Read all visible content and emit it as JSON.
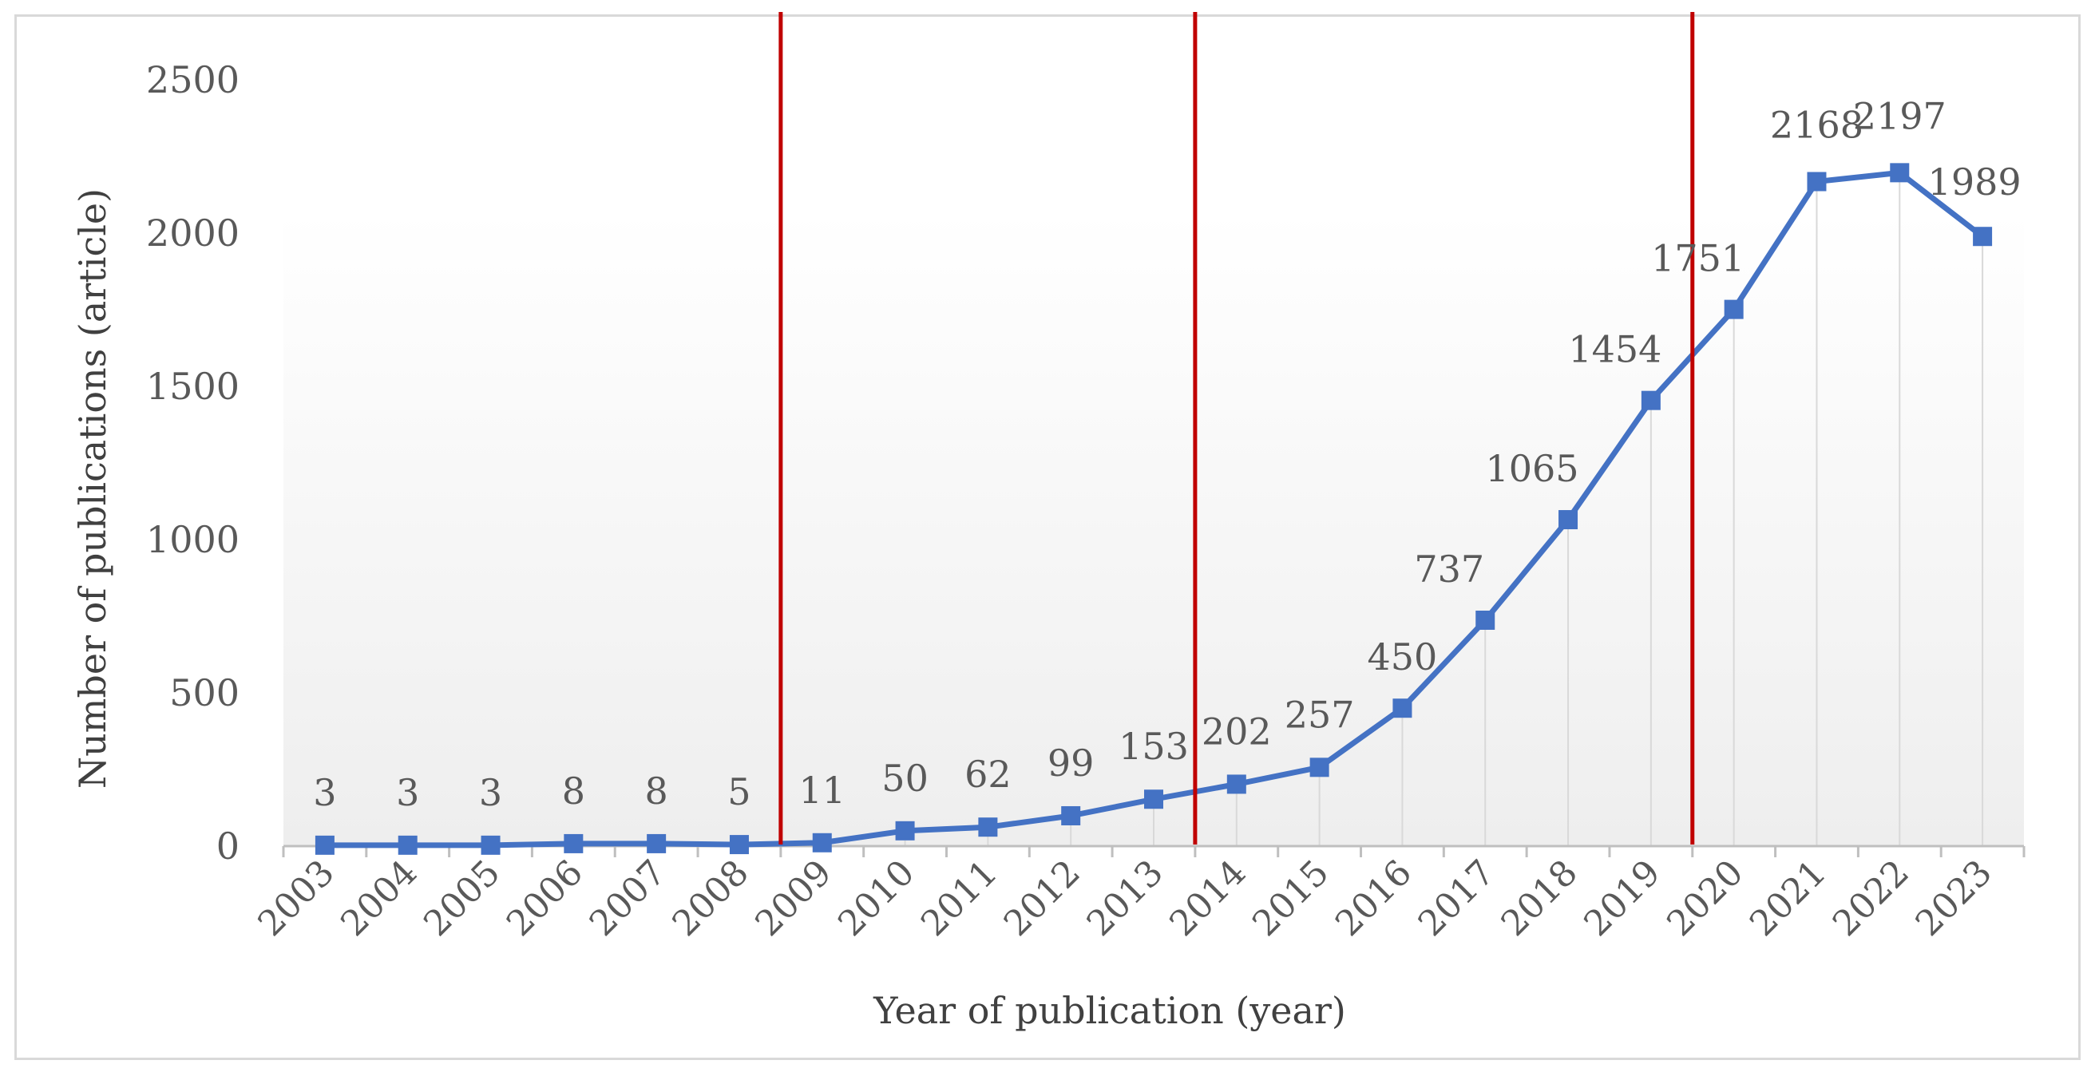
{
  "chart_data": {
    "type": "line",
    "xlabel": "Year of publication (year)",
    "ylabel": "Number of publications (article)",
    "ylim": [
      0,
      2500
    ],
    "yticks": [
      "0",
      "500",
      "1000",
      "1500",
      "2000",
      "2500"
    ],
    "categories": [
      "2003",
      "2004",
      "2005",
      "2006",
      "2007",
      "2008",
      "2009",
      "2010",
      "2011",
      "2012",
      "2013",
      "2014",
      "2015",
      "2016",
      "2017",
      "2018",
      "2019",
      "2020",
      "2021",
      "2022",
      "2023"
    ],
    "values": [
      3,
      3,
      3,
      8,
      8,
      5,
      11,
      50,
      62,
      99,
      153,
      202,
      257,
      450,
      737,
      1065,
      1454,
      1751,
      2168,
      2197,
      1989
    ],
    "data_labels": [
      "3",
      "3",
      "3",
      "8",
      "8",
      "5",
      "11",
      "50",
      "62",
      "99",
      "153",
      "202",
      "257",
      "450",
      "737",
      "1065",
      "1454",
      "1751",
      "2168",
      "2197",
      "1989"
    ],
    "markers": "square",
    "drop_lines": true,
    "grid": false,
    "legend": "none",
    "reference_lines_after": [
      "2008",
      "2013",
      "2019"
    ],
    "colors": {
      "series": "#4472C4",
      "reference_lines": "#C00000",
      "drop_lines": "#d9d9d9",
      "axis": "#bfbfbf",
      "text": "#595959"
    }
  }
}
